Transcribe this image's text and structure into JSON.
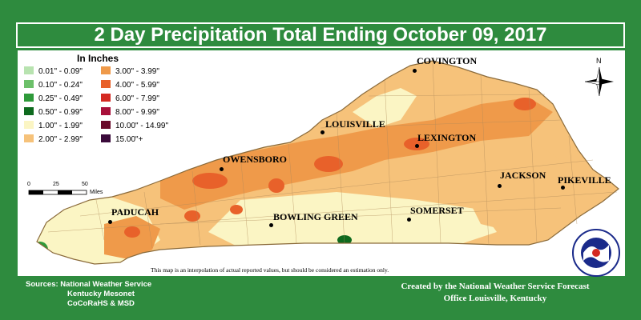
{
  "title": "2 Day Precipitation Total Ending October 09, 2017",
  "legend": {
    "title": "In Inches",
    "items": [
      {
        "label": "0.01\" - 0.09\"",
        "color": "#b8e3b0"
      },
      {
        "label": "0.10\" - 0.24\"",
        "color": "#6cc06a"
      },
      {
        "label": "0.25\" - 0.49\"",
        "color": "#2e9a3a"
      },
      {
        "label": "0.50\" - 0.99\"",
        "color": "#0e6a1e"
      },
      {
        "label": "1.00\" - 1.99\"",
        "color": "#fbf5c4"
      },
      {
        "label": "2.00\" - 2.99\"",
        "color": "#f6c27a"
      },
      {
        "label": "3.00\" - 3.99\"",
        "color": "#ef9a4a"
      },
      {
        "label": "4.00\" - 5.99\"",
        "color": "#e8612a"
      },
      {
        "label": "6.00\" - 7.99\"",
        "color": "#d42a22"
      },
      {
        "label": "8.00\" - 9.99\"",
        "color": "#a8103a"
      },
      {
        "label": "10.00\" - 14.99\"",
        "color": "#6a0a2a"
      },
      {
        "label": "15.00\"+",
        "color": "#3a0a3a"
      }
    ]
  },
  "scale": {
    "ticks": [
      "0",
      "25",
      "50"
    ],
    "unit": "Miles"
  },
  "north_label": "N",
  "cities": [
    {
      "name": "COVINGTON"
    },
    {
      "name": "LOUISVILLE"
    },
    {
      "name": "LEXINGTON"
    },
    {
      "name": "OWENSBORO"
    },
    {
      "name": "JACKSON"
    },
    {
      "name": "PIKEVILLE"
    },
    {
      "name": "PADUCAH"
    },
    {
      "name": "BOWLING GREEN"
    },
    {
      "name": "SOMERSET"
    }
  ],
  "disclaimer": "This map is an interpolation of actual reported values, but should be considered an estimation only.",
  "sources": {
    "label": "Sources:",
    "lines": [
      "National Weather Service",
      "Kentucky Mesonet",
      "CoCoRaHS & MSD"
    ]
  },
  "credit": {
    "line1": "Created by the National Weather Service Forecast",
    "line2": "Office Louisville, Kentucky"
  },
  "logo_text": "NATIONAL WEATHER SERVICE",
  "colors": {
    "frame_green": "#2e8b3e",
    "state_outline": "#a07840"
  }
}
